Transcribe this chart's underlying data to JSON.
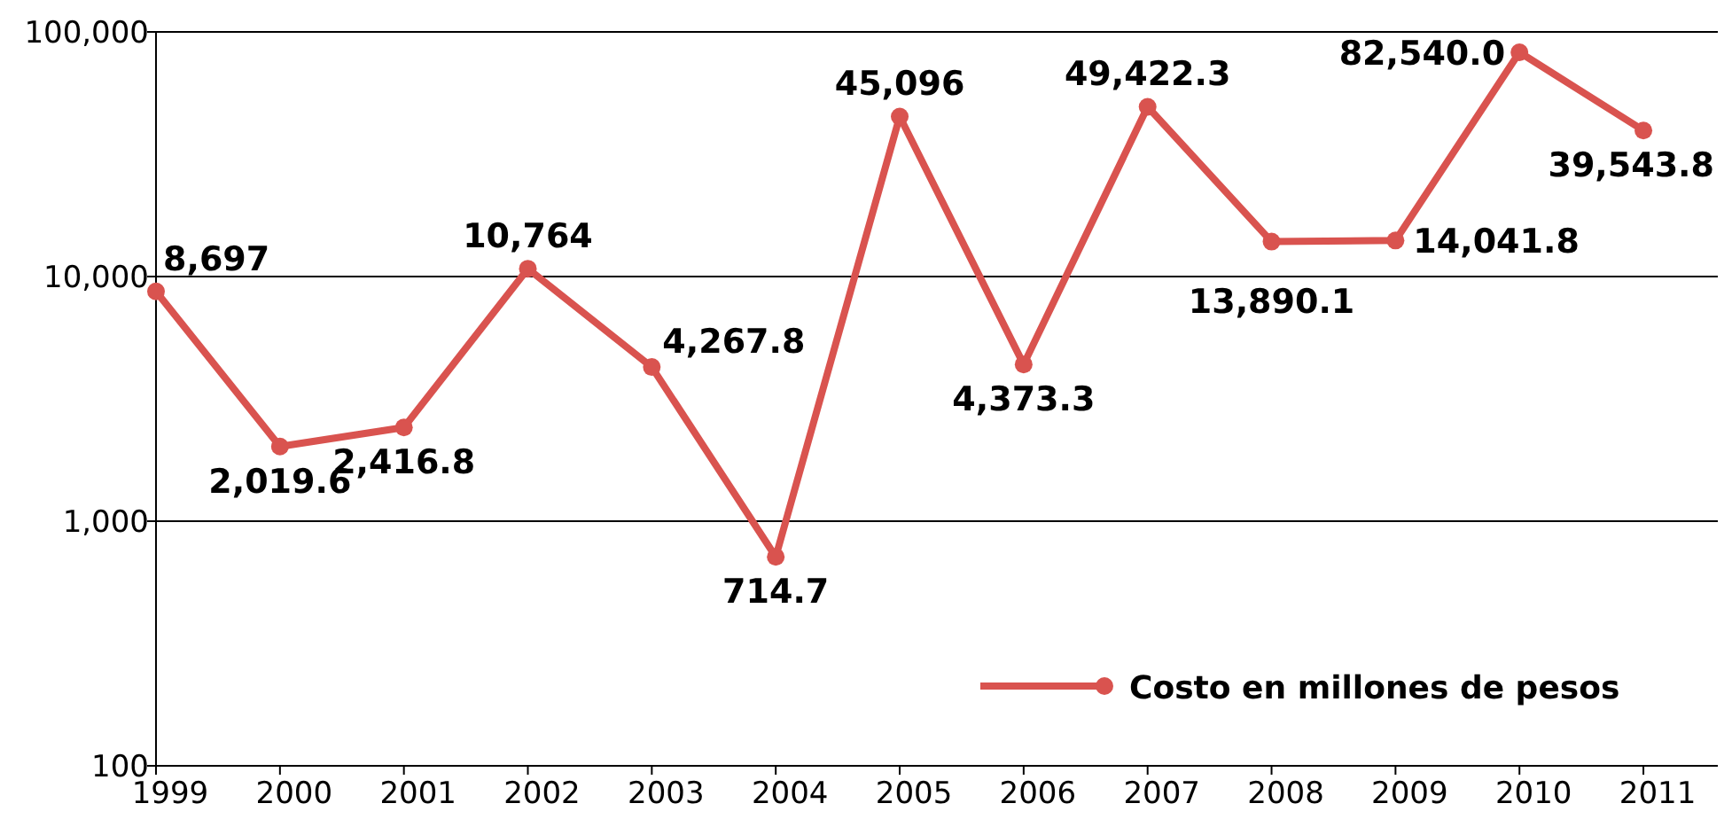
{
  "chart_data": {
    "type": "line",
    "categories": [
      "1999",
      "2000",
      "2001",
      "2002",
      "2003",
      "2004",
      "2005",
      "2006",
      "2007",
      "2008",
      "2009",
      "2010",
      "2011"
    ],
    "series": [
      {
        "name": "Costo en millones de pesos",
        "color": "#d9534f",
        "values": [
          8697,
          2019.6,
          2416.8,
          10764,
          4267.8,
          714.7,
          45096,
          4373.3,
          49422.3,
          13890.1,
          14041.8,
          82540.0,
          39543.8
        ],
        "value_labels": [
          "8,697",
          "2,019.6",
          "2,416.8",
          "10,764",
          "4,267.8",
          "714.7",
          "45,096",
          "4,373.3",
          "49,422.3",
          "13,890.1",
          "14,041.8",
          "82,540.0",
          "39,543.8"
        ]
      }
    ],
    "log": true,
    "ylim": [
      100,
      100000
    ],
    "yticks": [
      {
        "value": 100,
        "label": "100"
      },
      {
        "value": 1000,
        "label": "1,000"
      },
      {
        "value": 10000,
        "label": "10,000"
      },
      {
        "value": 100000,
        "label": "100,000"
      }
    ],
    "grid": "y",
    "legend": "bottom right",
    "marker": "circle",
    "line_style": "solid"
  }
}
